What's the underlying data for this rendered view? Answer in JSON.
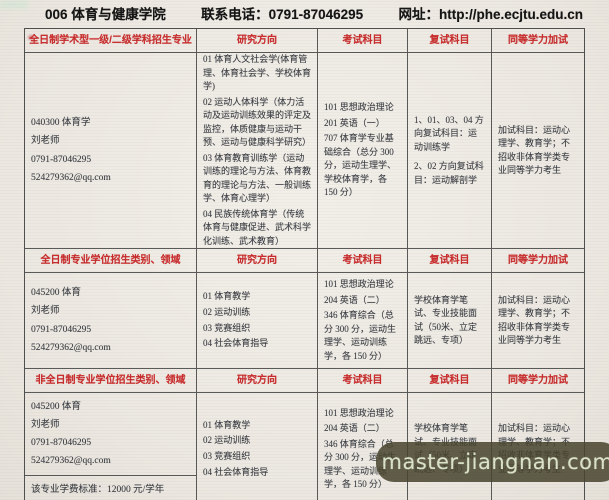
{
  "header": {
    "title": "006 体育与健康学院",
    "phone": "联系电话：0791-87046295",
    "website": "网址：http://phe.ecjtu.edu.cn"
  },
  "colors": {
    "header_red": "#c92f2f",
    "body_text": "#3b3e44",
    "border": "#595a58",
    "page_bg": "#ece8e1",
    "watermark_bg": "#48452f",
    "watermark_text": "#dbe3c8"
  },
  "sections": [
    {
      "headers": [
        "全日制学术型一级/二级学科招生专业",
        "研究方向",
        "考试科目",
        "复试科目",
        "同等学力加试"
      ],
      "program": {
        "code": "040300  体育学",
        "teacher": "刘老师",
        "phone": "0791-87046295",
        "email": "524279362@qq.com"
      },
      "directions": [
        "01 体育人文社会学(体育管理、体育社会学、学校体育学)",
        "02 运动人体科学（体力活动及运动训练效果的评定及监控，体质健康与运动干预、运动与健康科学研究）",
        "03 体育教育训练学（运动训练的理论与方法、体育教育的理论与方法、一般训练学、体育心理学）",
        "04 民族传统体育学（传统体育与健康促进、武术科学化训练、武术教育）"
      ],
      "exam_subjects": [
        "101 思想政治理论",
        "201 英语（一）",
        "707 体育学专业基础综合（总分 300 分，运动生理学、学校体育学，各 150 分）"
      ],
      "retest_subjects": [
        "1、01、03、04 方向复试科目：运动训练学",
        "2、02 方向复试科目：运动解剖学"
      ],
      "equivalency_test": "加试科目：运动心理学、教育学；不招收非体育学类专业同等学力考生"
    },
    {
      "headers": [
        "全日制专业学位招生类别、领域",
        "研究方向",
        "考试科目",
        "复试科目",
        "同等学力加试"
      ],
      "program": {
        "code": "045200  体育",
        "teacher": "刘老师",
        "phone": "0791-87046295",
        "email": "524279362@qq.com"
      },
      "directions": [
        "01 体育教学",
        "02 运动训练",
        "03 竞赛组织",
        "04 社会体育指导"
      ],
      "exam_subjects": [
        "101 思想政治理论",
        "204 英语（二）",
        "346 体育综合（总分 300 分，运动生理学、运动训练学，各 150 分）"
      ],
      "retest_subjects": [
        "学校体育学笔试、专业技能面试（50米、立定跳远、专项）"
      ],
      "equivalency_test": "加试科目：运动心理学、教育学；不招收非体育学类专业同等学力考生"
    },
    {
      "headers": [
        "非全日制专业学位招生类别、领域",
        "研究方向",
        "考试科目",
        "复试科目",
        "同等学力加试"
      ],
      "program": {
        "code": "045200  体育",
        "teacher": "刘老师",
        "phone": "0791-87046295",
        "email": "524279362@qq.com"
      },
      "tuition": "该专业学费标准：12000 元/学年",
      "directions": [
        "01 体育教学",
        "02 运动训练",
        "03 竞赛组织",
        "04 社会体育指导"
      ],
      "exam_subjects": [
        "101 思想政治理论",
        "204 英语（二）",
        "346 体育综合（总分 300 分，运动生理学、运动训练学，各 150 分）"
      ],
      "retest_subjects": [
        "学校体育学笔试、专业技能面试（50米、立定跳远、专项）"
      ],
      "equivalency_test": "加试科目：运动心理学、教育学；不招收非体育学类专业同等学力考生"
    }
  ],
  "watermark": {
    "text": "master-jiangnan.com"
  }
}
